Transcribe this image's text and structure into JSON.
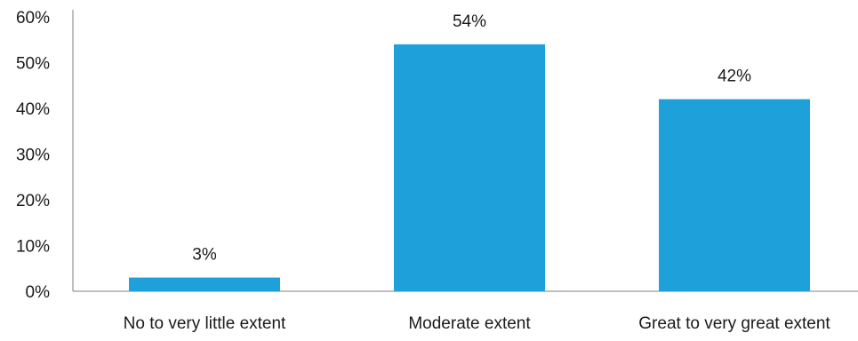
{
  "chart_data": {
    "type": "bar",
    "categories": [
      "No to very little extent",
      "Moderate extent",
      "Great to very great extent"
    ],
    "values": [
      3,
      54,
      42
    ],
    "value_labels": [
      "3%",
      "54%",
      "42%"
    ],
    "yticks": [
      "0%",
      "10%",
      "20%",
      "30%",
      "40%",
      "50%",
      "60%"
    ],
    "ylim": [
      0,
      60
    ],
    "bar_color": "#1ea1da",
    "grid": false,
    "legend": "none"
  }
}
